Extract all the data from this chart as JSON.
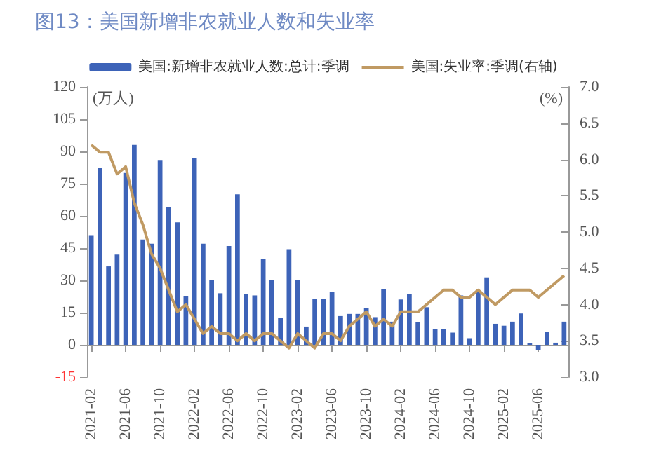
{
  "chart_data": {
    "type": "bar",
    "title": "图13：美国新增非农就业人数和失业率",
    "ylabel": "(万人)",
    "y2label": "(%)",
    "categories": [
      "2021-02",
      null,
      null,
      null,
      "2021-06",
      null,
      null,
      null,
      "2021-10",
      null,
      null,
      null,
      "2022-02",
      null,
      null,
      null,
      "2022-06",
      null,
      null,
      null,
      "2022-10",
      null,
      null,
      null,
      "2023-02",
      null,
      null,
      null,
      "2023-06",
      null,
      null,
      null,
      "2023-10",
      null,
      null,
      null,
      "2024-02",
      null,
      null,
      null,
      "2024-06",
      null,
      null,
      null,
      "2024-10",
      null,
      null,
      null,
      "2025-02",
      null,
      null,
      null,
      "2025-06",
      null,
      null,
      null
    ],
    "series": [
      {
        "name": "美国:新增非农就业人数:总计:季调",
        "color": "#3d63b8",
        "values": [
          51,
          82.5,
          36.5,
          42,
          80,
          93,
          49,
          47,
          86,
          64,
          57,
          22.5,
          87,
          47,
          30,
          24,
          46,
          70,
          23.5,
          23,
          40,
          30,
          12.5,
          44.5,
          30,
          8.5,
          21.5,
          21.5,
          24.7,
          13.4,
          14.4,
          14.4,
          17.2,
          12.9,
          25.9,
          10.8,
          21.1,
          23.5,
          10.5,
          17.5,
          7.2,
          7.4,
          5.7,
          23,
          3.1,
          24.7,
          31.4,
          9.8,
          8.9,
          10.8,
          14.6,
          0.7,
          -2.4,
          6,
          1,
          10.8
        ]
      },
      {
        "name": "美国:失业率:季调(右轴)",
        "type": "line",
        "axis": "y2",
        "color": "#c09a63",
        "values": [
          6.2,
          6.1,
          6.1,
          5.8,
          5.9,
          5.4,
          5.1,
          4.7,
          4.5,
          4.2,
          3.9,
          4.0,
          3.8,
          3.6,
          3.7,
          3.6,
          3.6,
          3.5,
          3.6,
          3.5,
          3.6,
          3.6,
          3.5,
          3.4,
          3.6,
          3.5,
          3.4,
          3.6,
          3.6,
          3.5,
          3.7,
          3.8,
          3.9,
          3.7,
          3.8,
          3.7,
          3.9,
          3.9,
          3.9,
          4.0,
          4.1,
          4.2,
          4.2,
          4.1,
          4.1,
          4.2,
          4.1,
          4.0,
          4.1,
          4.2,
          4.2,
          4.2,
          4.1,
          4.2,
          4.3,
          4.4
        ]
      }
    ],
    "ylim": [
      -15,
      120
    ],
    "yticks": [
      -15,
      0,
      15,
      30,
      45,
      60,
      75,
      90,
      105,
      120
    ],
    "y2lim": [
      3.0,
      7.0
    ],
    "y2ticks": [
      {
        "value": 3.0,
        "label": "3.0"
      },
      {
        "value": 3.5,
        "label": "3.5"
      },
      {
        "value": 4.0,
        "label": "4.0"
      },
      {
        "value": 4.5,
        "label": "4.5"
      },
      {
        "value": 5.0,
        "label": "5.0"
      },
      {
        "value": 5.5,
        "label": "5.5"
      },
      {
        "value": 6.0,
        "label": "6.0"
      },
      {
        "value": 6.5,
        "label": "6.5"
      },
      {
        "value": 7.0,
        "label": "7.0"
      }
    ],
    "legend": "top",
    "marker": "none",
    "line_style": "solid"
  }
}
